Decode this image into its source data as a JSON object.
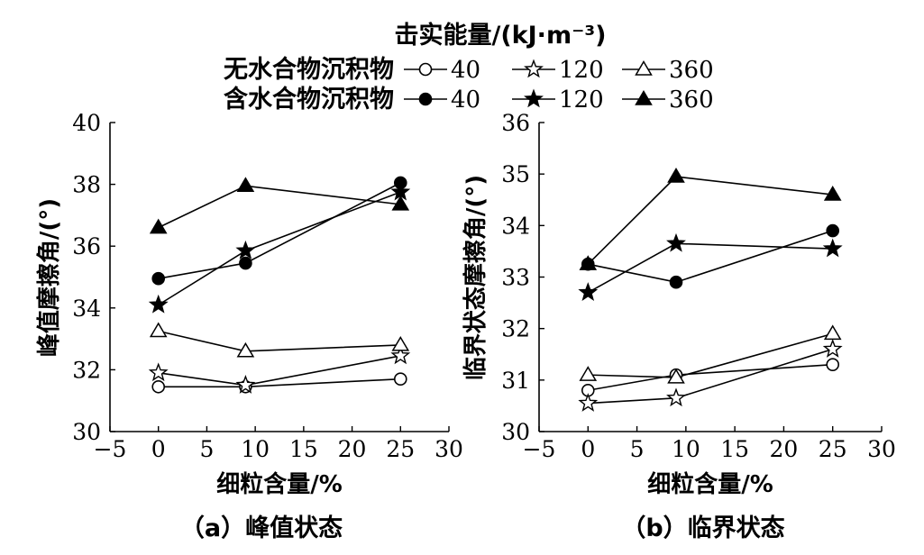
{
  "legend": {
    "title": "击实能量/(kJ·m⁻³)",
    "row1_label": "无水合物沉积物",
    "row2_label": "含水合物沉积物",
    "energy_labels": [
      "40",
      "120",
      "360"
    ]
  },
  "chart_data": [
    {
      "type": "line",
      "title": "（a）峰值状态",
      "xlabel": "细粒含量/%",
      "ylabel": "峰值摩擦角/(°)",
      "xlim": [
        -5,
        30
      ],
      "ylim": [
        30,
        40
      ],
      "xticks": [
        "−5",
        "0",
        "5",
        "10",
        "15",
        "20",
        "25",
        "30"
      ],
      "yticks": [
        "30",
        "32",
        "34",
        "36",
        "38",
        "40"
      ],
      "x": [
        0,
        9,
        25
      ],
      "series": [
        {
          "name": "无水合物沉积物 40",
          "marker": "circle-open",
          "values": [
            31.45,
            31.45,
            31.7
          ]
        },
        {
          "name": "无水合物沉积物 120",
          "marker": "star-open",
          "values": [
            31.9,
            31.5,
            32.45
          ]
        },
        {
          "name": "无水合物沉积物 360",
          "marker": "triangle-open",
          "values": [
            33.25,
            32.6,
            32.8
          ]
        },
        {
          "name": "含水合物沉积物 40",
          "marker": "circle-filled",
          "values": [
            34.95,
            35.45,
            38.05
          ]
        },
        {
          "name": "含水合物沉积物 120",
          "marker": "star-filled",
          "values": [
            34.1,
            35.85,
            37.75
          ]
        },
        {
          "name": "含水合物沉积物 360",
          "marker": "triangle-filled",
          "values": [
            36.6,
            37.95,
            37.35
          ]
        }
      ]
    },
    {
      "type": "line",
      "title": "（b）临界状态",
      "xlabel": "细粒含量/%",
      "ylabel": "临界状态摩擦角/(°)",
      "xlim": [
        -5,
        30
      ],
      "ylim": [
        30,
        36
      ],
      "xticks": [
        "−5",
        "0",
        "5",
        "10",
        "15",
        "20",
        "25",
        "30"
      ],
      "yticks": [
        "30",
        "31",
        "32",
        "33",
        "34",
        "35",
        "36"
      ],
      "x": [
        0,
        9,
        25
      ],
      "series": [
        {
          "name": "无水合物沉积物 40",
          "marker": "circle-open",
          "values": [
            30.8,
            31.1,
            31.3
          ]
        },
        {
          "name": "无水合物沉积物 120",
          "marker": "star-open",
          "values": [
            30.55,
            30.65,
            31.6
          ]
        },
        {
          "name": "无水合物沉积物 360",
          "marker": "triangle-open",
          "values": [
            31.1,
            31.05,
            31.9
          ]
        },
        {
          "name": "含水合物沉积物 40",
          "marker": "circle-filled",
          "values": [
            33.25,
            32.9,
            33.9
          ]
        },
        {
          "name": "含水合物沉积物 120",
          "marker": "star-filled",
          "values": [
            32.7,
            33.65,
            33.55
          ]
        },
        {
          "name": "含水合物沉积物 360",
          "marker": "triangle-filled",
          "values": [
            33.25,
            34.95,
            34.6
          ]
        }
      ]
    }
  ]
}
